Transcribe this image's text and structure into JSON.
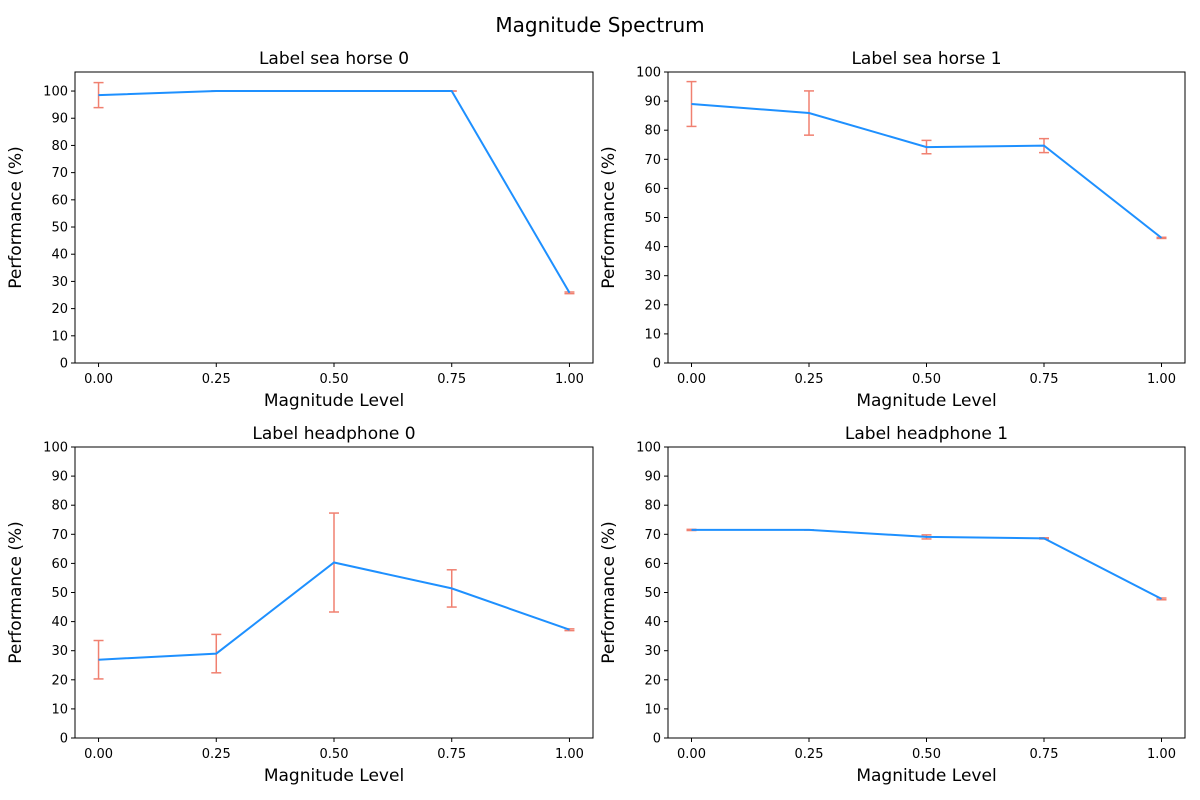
{
  "figure": {
    "title": "Magnitude Spectrum"
  },
  "colors": {
    "line": "#1e90ff",
    "errorbar": "#f08070",
    "axes": "#000000"
  },
  "chart_data": [
    {
      "type": "line",
      "title": "Label sea horse 0",
      "xlabel": "Magnitude Level",
      "ylabel": "Performance (%)",
      "x": [
        0.0,
        0.25,
        0.5,
        0.75,
        1.0
      ],
      "x_tick_labels": [
        "0.00",
        "0.25",
        "0.50",
        "0.75",
        "1.00"
      ],
      "y_ticks": [
        0,
        10,
        20,
        30,
        40,
        50,
        60,
        70,
        80,
        90,
        100
      ],
      "xlim": [
        -0.05,
        1.05
      ],
      "ylim": [
        0,
        107
      ],
      "series": [
        {
          "values": [
            98.5,
            100,
            100,
            100,
            25.8
          ],
          "errors": [
            4.6,
            0,
            0,
            0,
            0.3
          ]
        }
      ]
    },
    {
      "type": "line",
      "title": "Label sea horse 1",
      "xlabel": "Magnitude Level",
      "ylabel": "Performance (%)",
      "x": [
        0.0,
        0.25,
        0.5,
        0.75,
        1.0
      ],
      "x_tick_labels": [
        "0.00",
        "0.25",
        "0.50",
        "0.75",
        "1.00"
      ],
      "y_ticks": [
        0,
        10,
        20,
        30,
        40,
        50,
        60,
        70,
        80,
        90,
        100
      ],
      "xlim": [
        -0.05,
        1.05
      ],
      "ylim": [
        0,
        100
      ],
      "series": [
        {
          "values": [
            89.0,
            85.9,
            74.2,
            74.7,
            43.0
          ],
          "errors": [
            7.7,
            7.6,
            2.3,
            2.4,
            0.2
          ]
        }
      ]
    },
    {
      "type": "line",
      "title": "Label headphone 0",
      "xlabel": "Magnitude Level",
      "ylabel": "Performance (%)",
      "x": [
        0.0,
        0.25,
        0.5,
        0.75,
        1.0
      ],
      "x_tick_labels": [
        "0.00",
        "0.25",
        "0.50",
        "0.75",
        "1.00"
      ],
      "y_ticks": [
        0,
        10,
        20,
        30,
        40,
        50,
        60,
        70,
        80,
        90,
        100
      ],
      "xlim": [
        -0.05,
        1.05
      ],
      "ylim": [
        0,
        100
      ],
      "series": [
        {
          "values": [
            26.9,
            29.0,
            60.3,
            51.4,
            37.2
          ],
          "errors": [
            6.6,
            6.6,
            17.0,
            6.4,
            0.3
          ]
        }
      ]
    },
    {
      "type": "line",
      "title": "Label headphone 1",
      "xlabel": "Magnitude Level",
      "ylabel": "Performance (%)",
      "x": [
        0.0,
        0.25,
        0.5,
        0.75,
        1.0
      ],
      "x_tick_labels": [
        "0.00",
        "0.25",
        "0.50",
        "0.75",
        "1.00"
      ],
      "y_ticks": [
        0,
        10,
        20,
        30,
        40,
        50,
        60,
        70,
        80,
        90,
        100
      ],
      "xlim": [
        -0.05,
        1.05
      ],
      "ylim": [
        0,
        100
      ],
      "series": [
        {
          "values": [
            71.5,
            71.5,
            69.1,
            68.6,
            47.8
          ],
          "errors": [
            0.2,
            0,
            0.7,
            0.2,
            0.3
          ]
        }
      ]
    }
  ]
}
